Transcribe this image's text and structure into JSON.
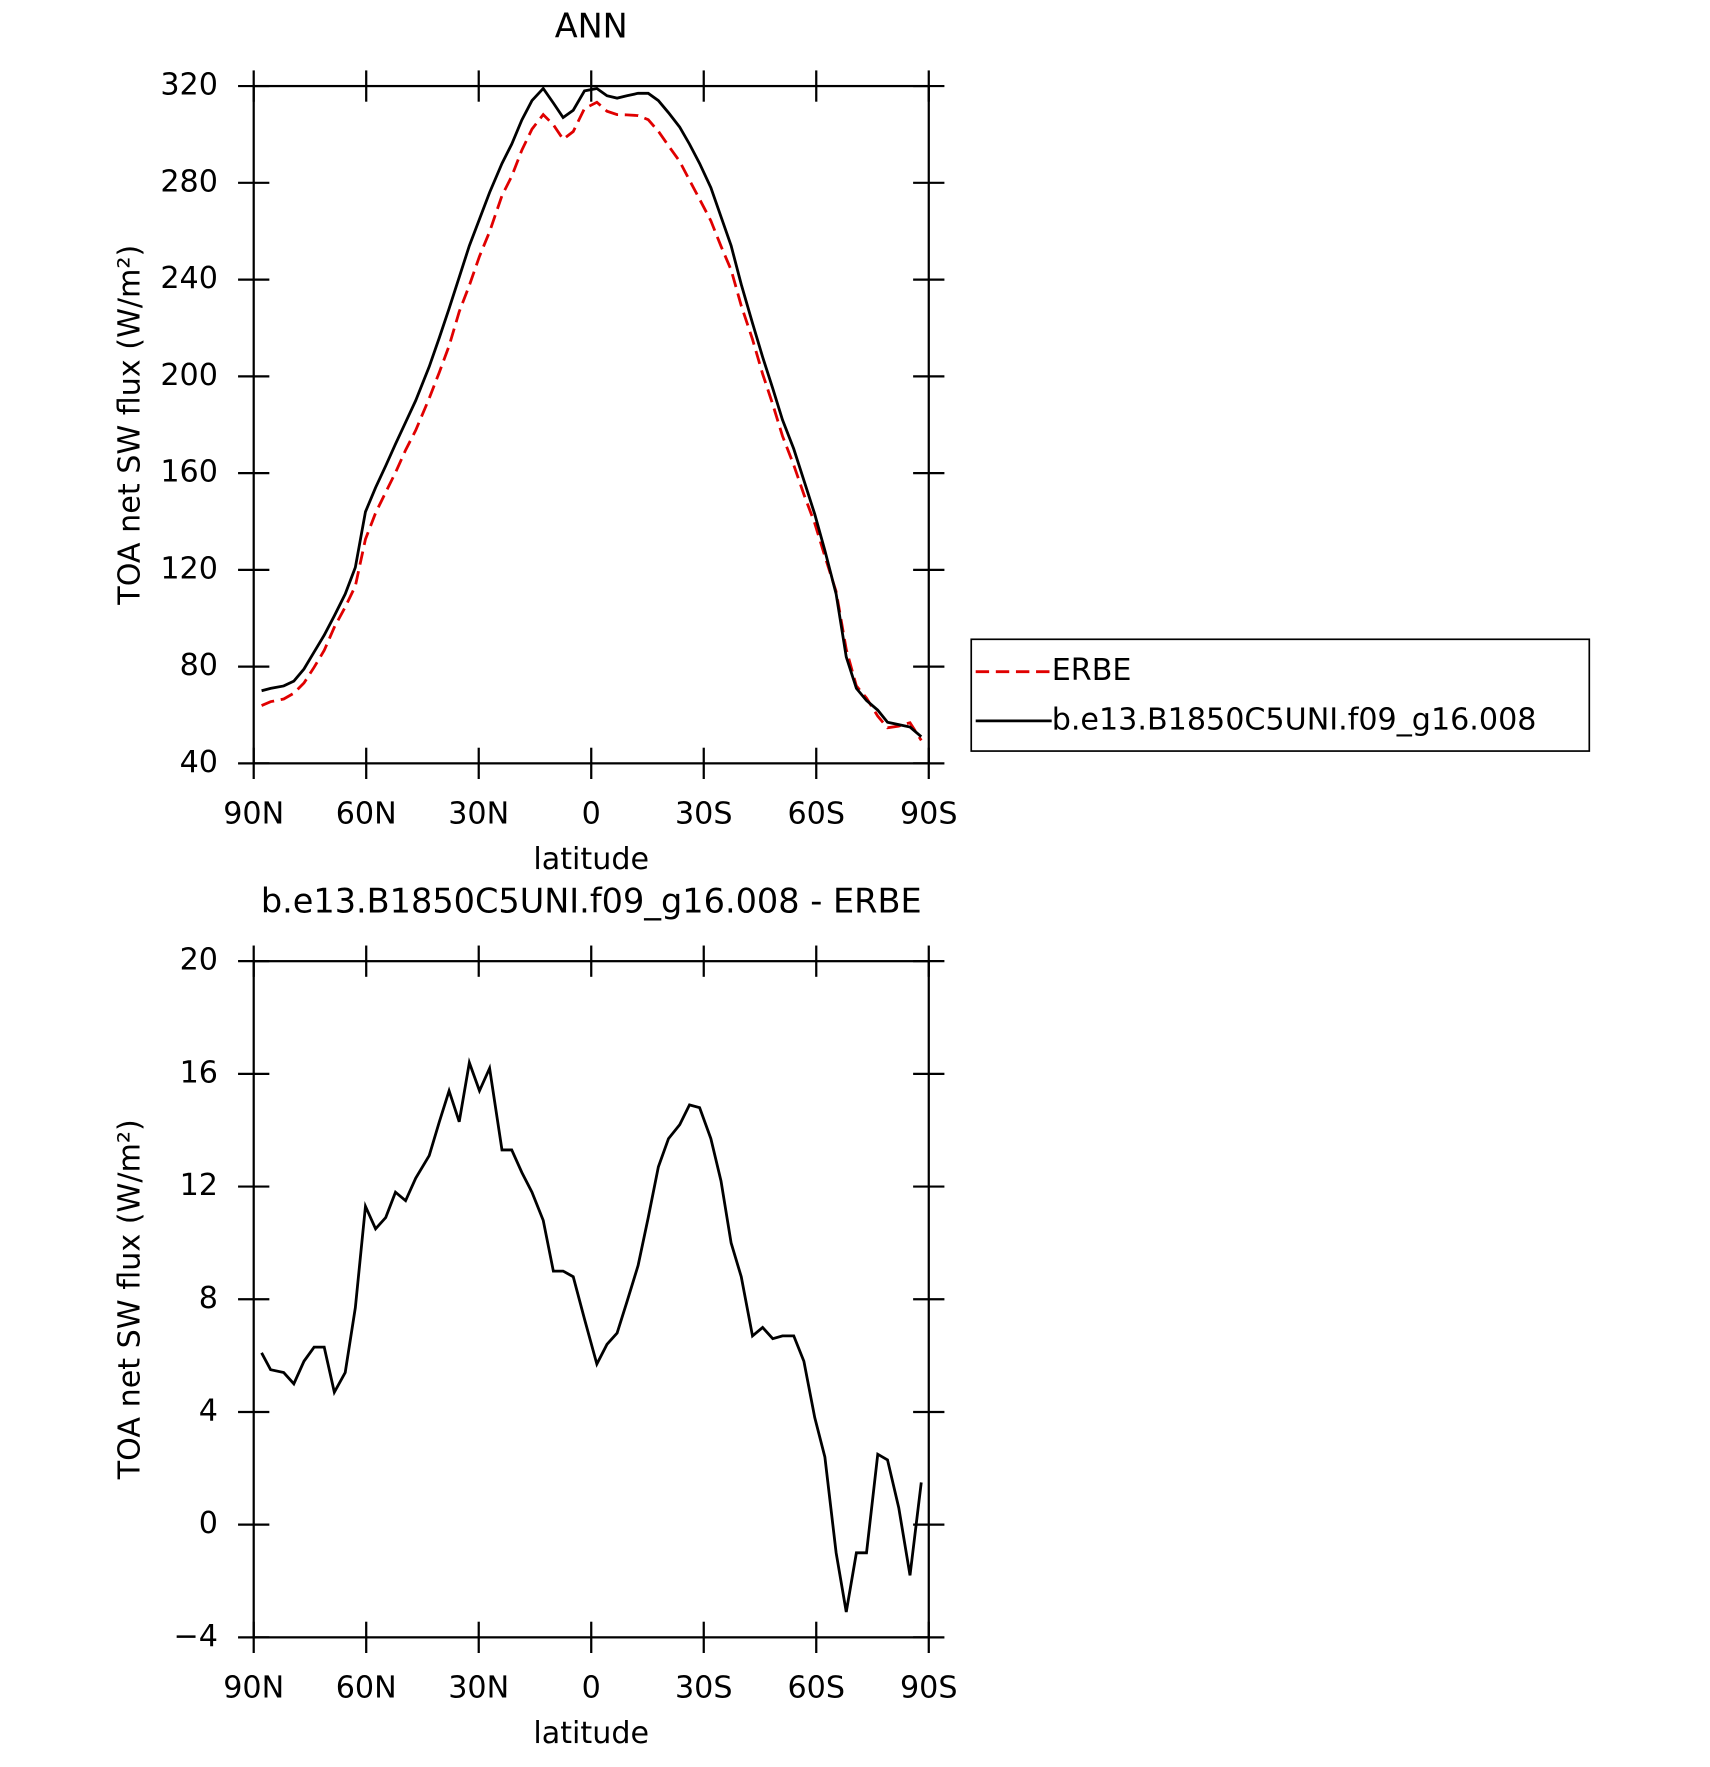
{
  "chart_data": [
    {
      "type": "line",
      "title": "ANN",
      "xlabel": "latitude",
      "ylabel": "TOA net SW flux (W/m²)",
      "x": [
        87.9,
        85.5,
        82,
        79.3,
        76.6,
        73.9,
        71.2,
        68.5,
        65.6,
        62.9,
        60.2,
        57.5,
        54.8,
        52.2,
        49.5,
        46.8,
        43.2,
        40.5,
        37.9,
        35.2,
        32.5,
        29.8,
        27.1,
        23.8,
        21.2,
        18.5,
        15.8,
        12.8,
        10.1,
        7.5,
        4.8,
        1.8,
        -1.5,
        -4.2,
        -6.9,
        -9.5,
        -12.5,
        -15.2,
        -17.9,
        -20.6,
        -23.6,
        -26.2,
        -28.9,
        -31.9,
        -34.6,
        -37.3,
        -40,
        -43,
        -45.7,
        -48.4,
        -51,
        -54,
        -56.7,
        -59.6,
        -62.3,
        -65.3,
        -68,
        -70.7,
        -73.4,
        -76.4,
        -79,
        -82,
        -85,
        -88
      ],
      "xlim": [
        90,
        -90
      ],
      "xticks": [
        {
          "value": 90,
          "label": "90N"
        },
        {
          "value": 60,
          "label": "60N"
        },
        {
          "value": 30,
          "label": "30N"
        },
        0,
        {
          "value": -30,
          "label": "30S"
        },
        {
          "value": -60,
          "label": "60S"
        },
        {
          "value": -90,
          "label": "90S"
        }
      ],
      "ylim": [
        40,
        320
      ],
      "yticks": [
        40,
        80,
        120,
        160,
        200,
        240,
        280,
        320
      ],
      "legend": "right",
      "series": [
        {
          "name": "ERBE",
          "color": "#e00000",
          "dashed": true,
          "values": [
            63.9,
            65.5,
            66.6,
            69.0,
            73.2,
            79.7,
            86.7,
            96.3,
            104.6,
            113.3,
            132.7,
            143.5,
            152.1,
            160.2,
            169.5,
            177.7,
            190.9,
            201.7,
            212.6,
            226.7,
            237.6,
            249.6,
            259.8,
            274.7,
            282.7,
            293.5,
            302.2,
            308.2,
            304.0,
            298.0,
            301.2,
            310.7,
            313.3,
            309.6,
            308.2,
            308.1,
            307.8,
            306.1,
            301.3,
            295.3,
            288.8,
            281.1,
            273.2,
            264.3,
            253.8,
            244.0,
            229.2,
            215.3,
            201.0,
            188.4,
            175.3,
            163.3,
            151.2,
            139.2,
            125.6,
            111.0,
            87.1,
            72.0,
            67.0,
            59.5,
            54.7,
            55.4,
            56.8,
            49.5
          ]
        },
        {
          "name": "b.e13.B1850C5UNI.f09_g16.008",
          "color": "#000000",
          "dashed": false,
          "values": [
            70,
            71,
            72,
            74,
            79,
            86,
            93,
            101,
            110,
            121,
            144,
            154,
            163,
            172,
            181,
            190,
            204,
            216,
            228,
            241,
            254,
            265,
            276,
            288,
            296,
            306,
            314,
            319,
            313,
            307,
            310,
            318,
            319,
            316,
            315,
            316,
            317,
            317,
            314,
            309,
            303,
            296,
            288,
            278,
            266,
            254,
            238,
            222,
            208,
            195,
            182,
            170,
            157,
            143,
            128,
            110,
            84,
            71,
            66,
            62,
            57,
            56,
            55,
            51
          ]
        }
      ]
    },
    {
      "type": "line",
      "title": "b.e13.B1850C5UNI.f09_g16.008 - ERBE",
      "xlabel": "latitude",
      "ylabel": "TOA net SW flux (W/m²)",
      "x": [
        87.9,
        85.5,
        82,
        79.3,
        76.6,
        73.9,
        71.2,
        68.5,
        65.6,
        62.9,
        60.2,
        57.5,
        54.8,
        52.2,
        49.5,
        46.8,
        43.2,
        40.5,
        37.9,
        35.2,
        32.5,
        29.8,
        27.1,
        23.8,
        21.2,
        18.5,
        15.8,
        12.8,
        10.1,
        7.5,
        4.8,
        1.8,
        -1.5,
        -4.2,
        -6.9,
        -9.5,
        -12.5,
        -15.2,
        -17.9,
        -20.6,
        -23.6,
        -26.2,
        -28.9,
        -31.9,
        -34.6,
        -37.3,
        -40,
        -43,
        -45.7,
        -48.4,
        -51,
        -54,
        -56.7,
        -59.6,
        -62.3,
        -65.3,
        -68,
        -70.7,
        -73.4,
        -76.4,
        -79,
        -82,
        -85,
        -88
      ],
      "xlim": [
        90,
        -90
      ],
      "xticks": [
        {
          "value": 90,
          "label": "90N"
        },
        {
          "value": 60,
          "label": "60N"
        },
        {
          "value": 30,
          "label": "30N"
        },
        0,
        {
          "value": -30,
          "label": "30S"
        },
        {
          "value": -60,
          "label": "60S"
        },
        {
          "value": -90,
          "label": "90S"
        }
      ],
      "ylim": [
        -4,
        20
      ],
      "yticks": [
        {
          "value": -4,
          "label": "−4"
        },
        0,
        4,
        8,
        12,
        16,
        20
      ],
      "series": [
        {
          "color": "#000000",
          "dashed": false,
          "values": [
            6.1,
            5.5,
            5.4,
            5.0,
            5.8,
            6.3,
            6.3,
            4.7,
            5.4,
            7.7,
            11.3,
            10.5,
            10.9,
            11.8,
            11.5,
            12.3,
            13.1,
            14.3,
            15.4,
            14.3,
            16.4,
            15.4,
            16.2,
            13.3,
            13.3,
            12.5,
            11.8,
            10.8,
            9.0,
            9.0,
            8.8,
            7.3,
            5.7,
            6.4,
            6.8,
            7.9,
            9.2,
            10.9,
            12.7,
            13.7,
            14.2,
            14.9,
            14.8,
            13.7,
            12.2,
            10.0,
            8.8,
            6.7,
            7.0,
            6.6,
            6.7,
            6.7,
            5.8,
            3.8,
            2.4,
            -1.0,
            -3.1,
            -1.0,
            -1.0,
            2.5,
            2.3,
            0.6,
            -1.8,
            1.5
          ]
        }
      ]
    }
  ]
}
